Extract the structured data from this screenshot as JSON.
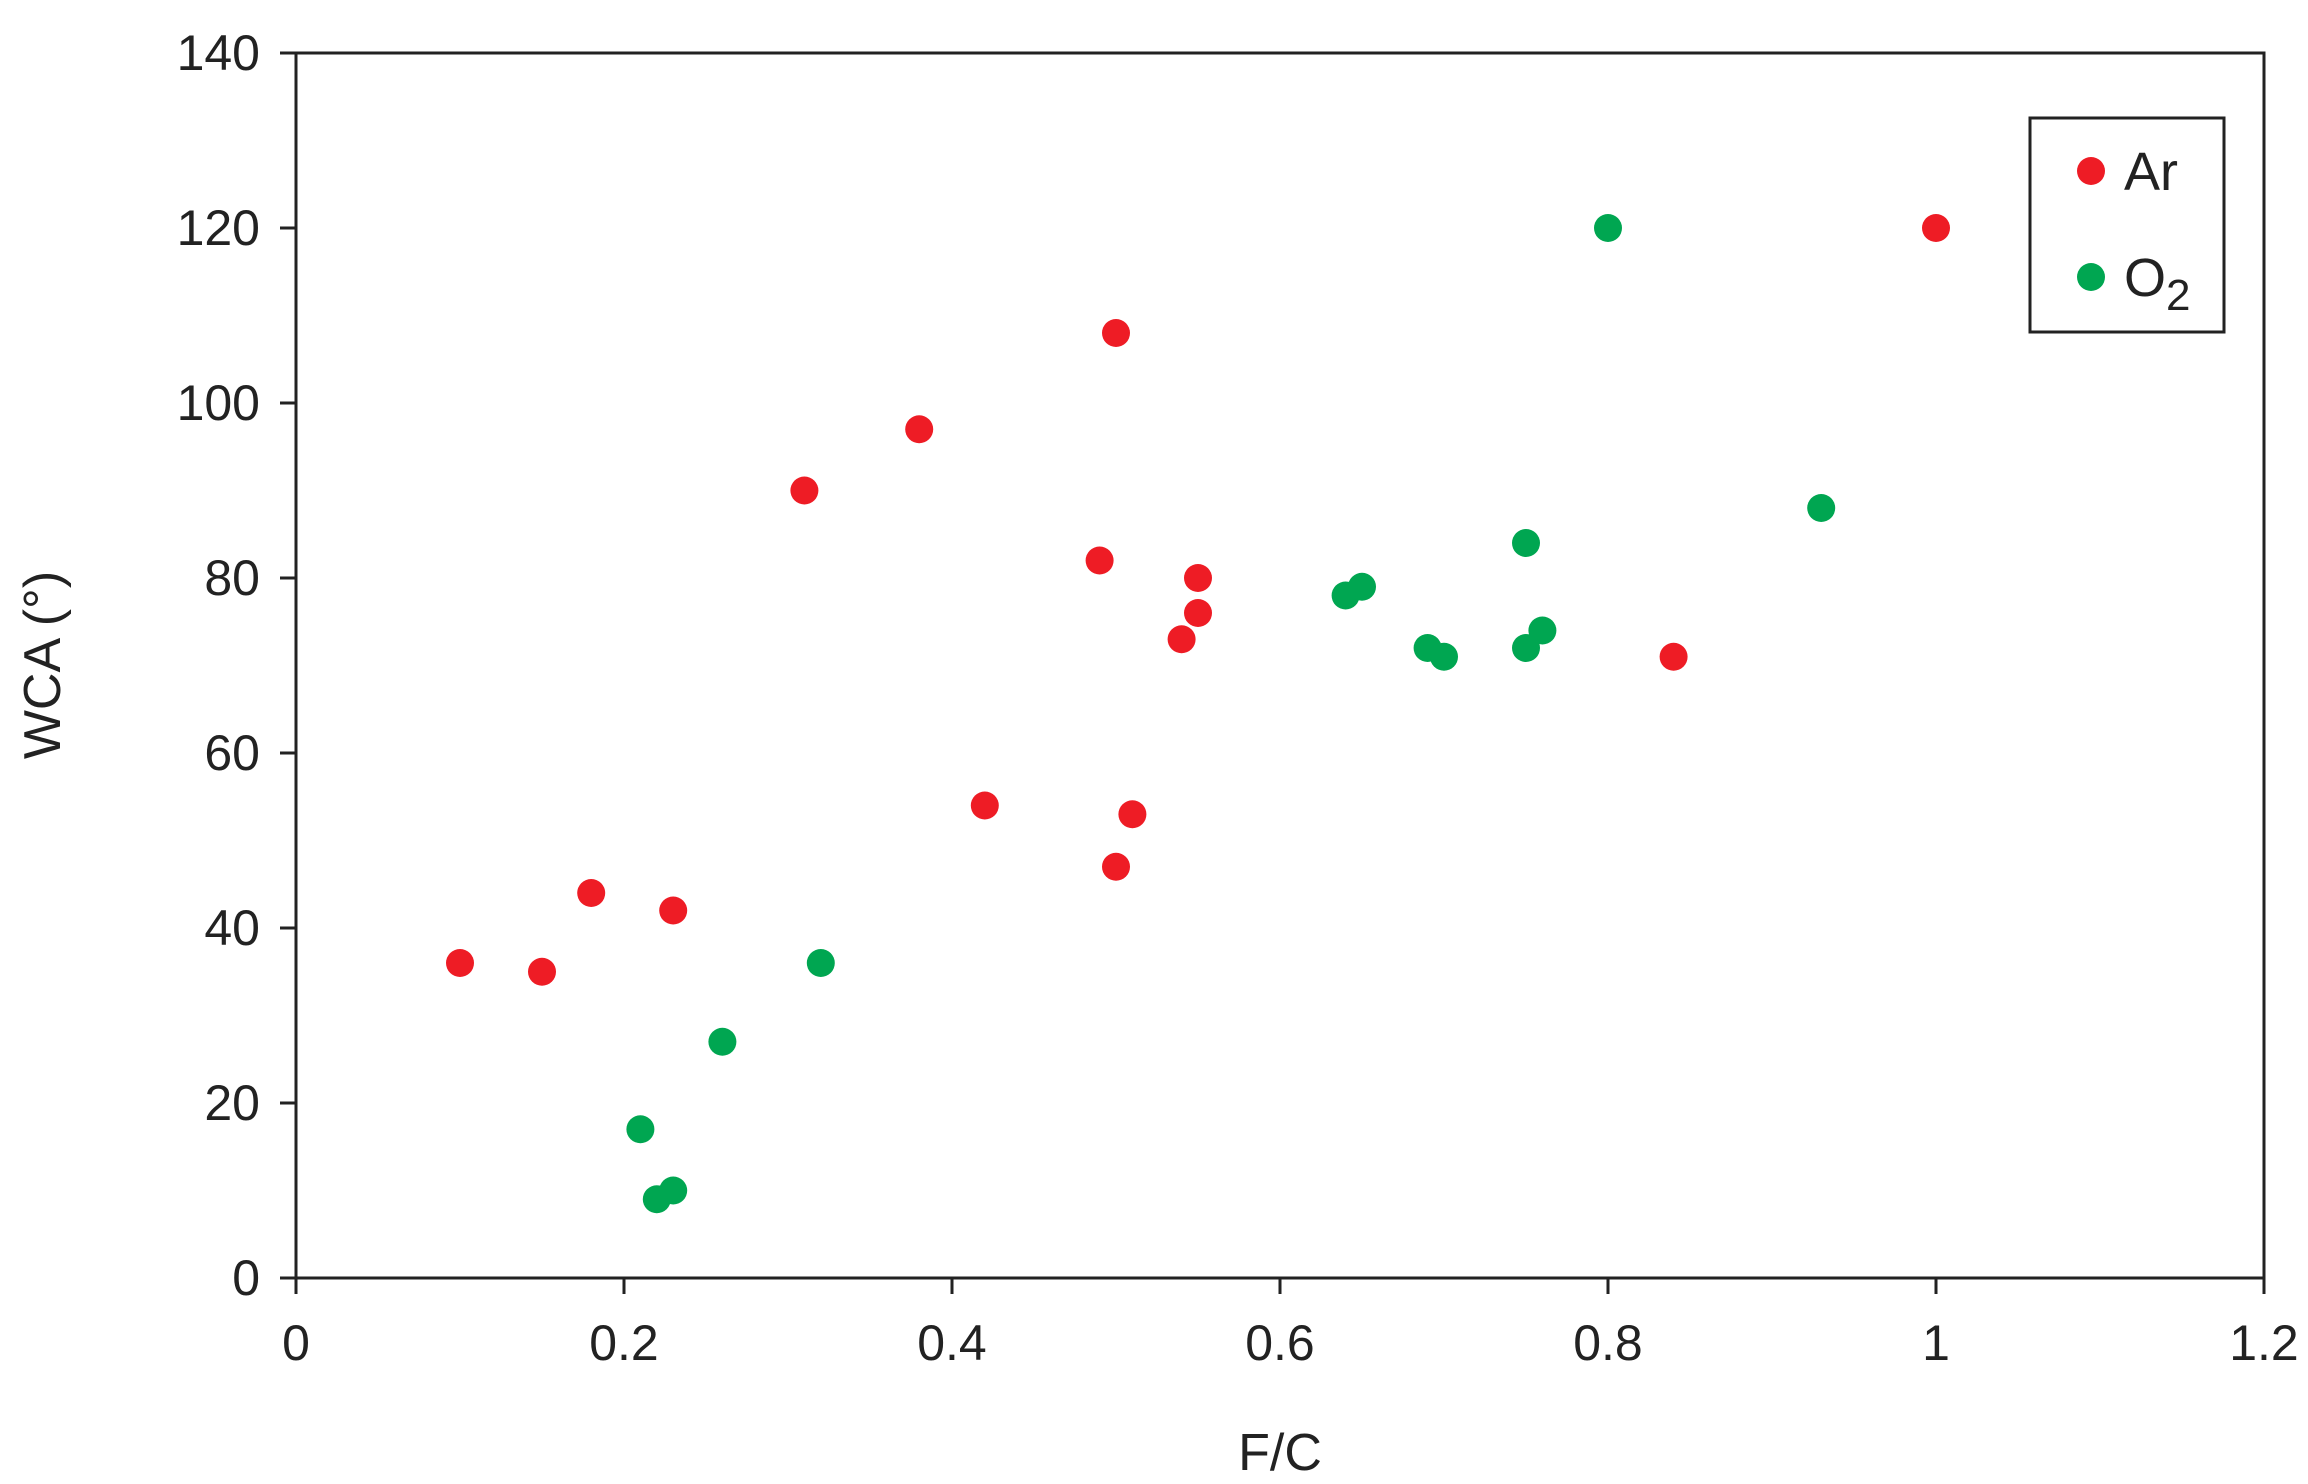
{
  "chart_data": {
    "type": "scatter",
    "title": "",
    "xlabel": "F/C",
    "ylabel": "WCA (°)",
    "xlim": [
      0,
      1.2
    ],
    "ylim": [
      0,
      140
    ],
    "xticks": [
      0,
      0.2,
      0.4,
      0.6,
      0.8,
      1,
      1.2
    ],
    "xtick_labels": [
      "0",
      "0.2",
      "0.4",
      "0.6",
      "0.8",
      "1",
      "1.2"
    ],
    "yticks": [
      0,
      20,
      40,
      60,
      80,
      100,
      120,
      140
    ],
    "ytick_labels": [
      "0",
      "20",
      "40",
      "60",
      "80",
      "100",
      "120",
      "140"
    ],
    "grid": false,
    "legend_position": "top-right",
    "series": [
      {
        "name": "Ar",
        "legend_main": "Ar",
        "legend_sub": "",
        "color": "#ee1c25",
        "points": [
          [
            0.1,
            36
          ],
          [
            0.15,
            35
          ],
          [
            0.18,
            44
          ],
          [
            0.23,
            42
          ],
          [
            0.31,
            90
          ],
          [
            0.38,
            97
          ],
          [
            0.42,
            54
          ],
          [
            0.49,
            82
          ],
          [
            0.5,
            108
          ],
          [
            0.5,
            47
          ],
          [
            0.51,
            53
          ],
          [
            0.54,
            73
          ],
          [
            0.55,
            80
          ],
          [
            0.55,
            76
          ],
          [
            0.84,
            71
          ],
          [
            1.0,
            120
          ]
        ]
      },
      {
        "name": "O2",
        "legend_main": "O",
        "legend_sub": "2",
        "color": "#00a651",
        "points": [
          [
            0.21,
            17
          ],
          [
            0.22,
            9
          ],
          [
            0.23,
            10
          ],
          [
            0.26,
            27
          ],
          [
            0.32,
            36
          ],
          [
            0.64,
            78
          ],
          [
            0.65,
            79
          ],
          [
            0.69,
            72
          ],
          [
            0.7,
            71
          ],
          [
            0.75,
            84
          ],
          [
            0.75,
            72
          ],
          [
            0.76,
            74
          ],
          [
            0.8,
            120
          ],
          [
            0.93,
            88
          ]
        ]
      }
    ]
  }
}
